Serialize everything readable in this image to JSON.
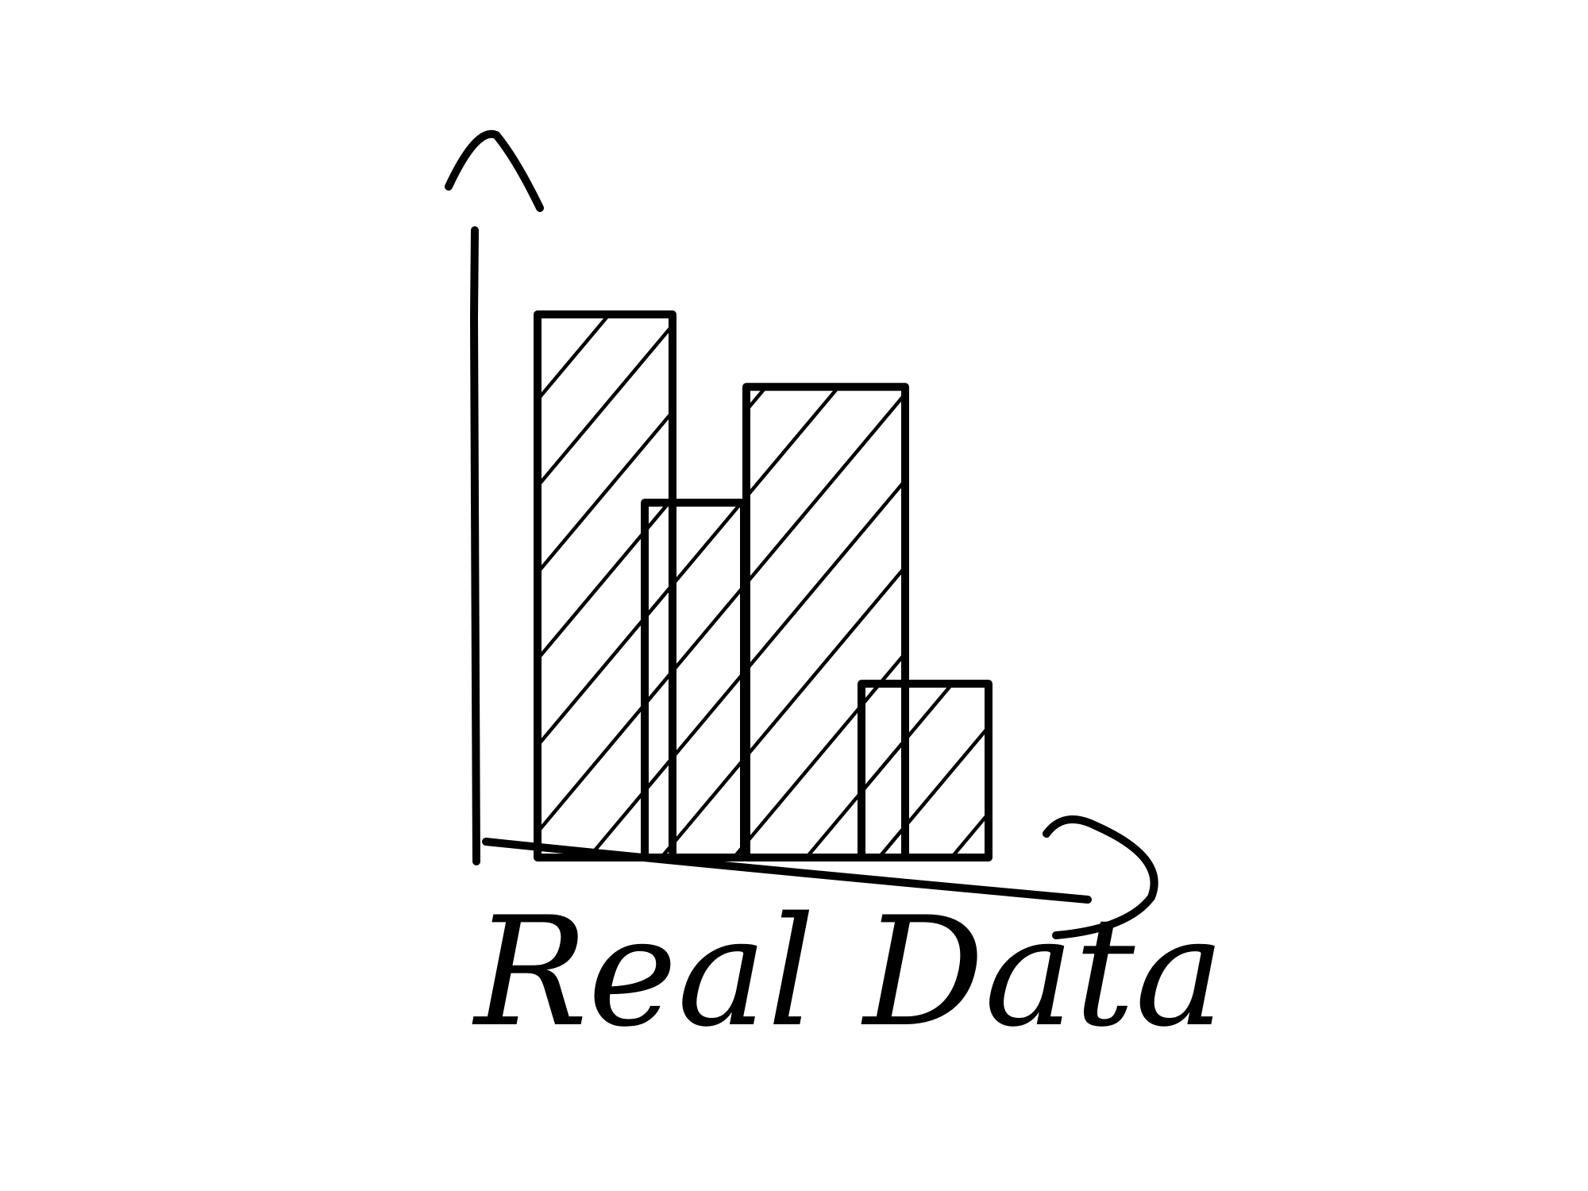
{
  "chart_data": {
    "type": "bar",
    "title": "Real Data",
    "categories": [
      null,
      null,
      null,
      null
    ],
    "values": [
      75,
      49,
      65,
      24
    ],
    "color": "#000000",
    "ylim": [
      0,
      100
    ]
  }
}
